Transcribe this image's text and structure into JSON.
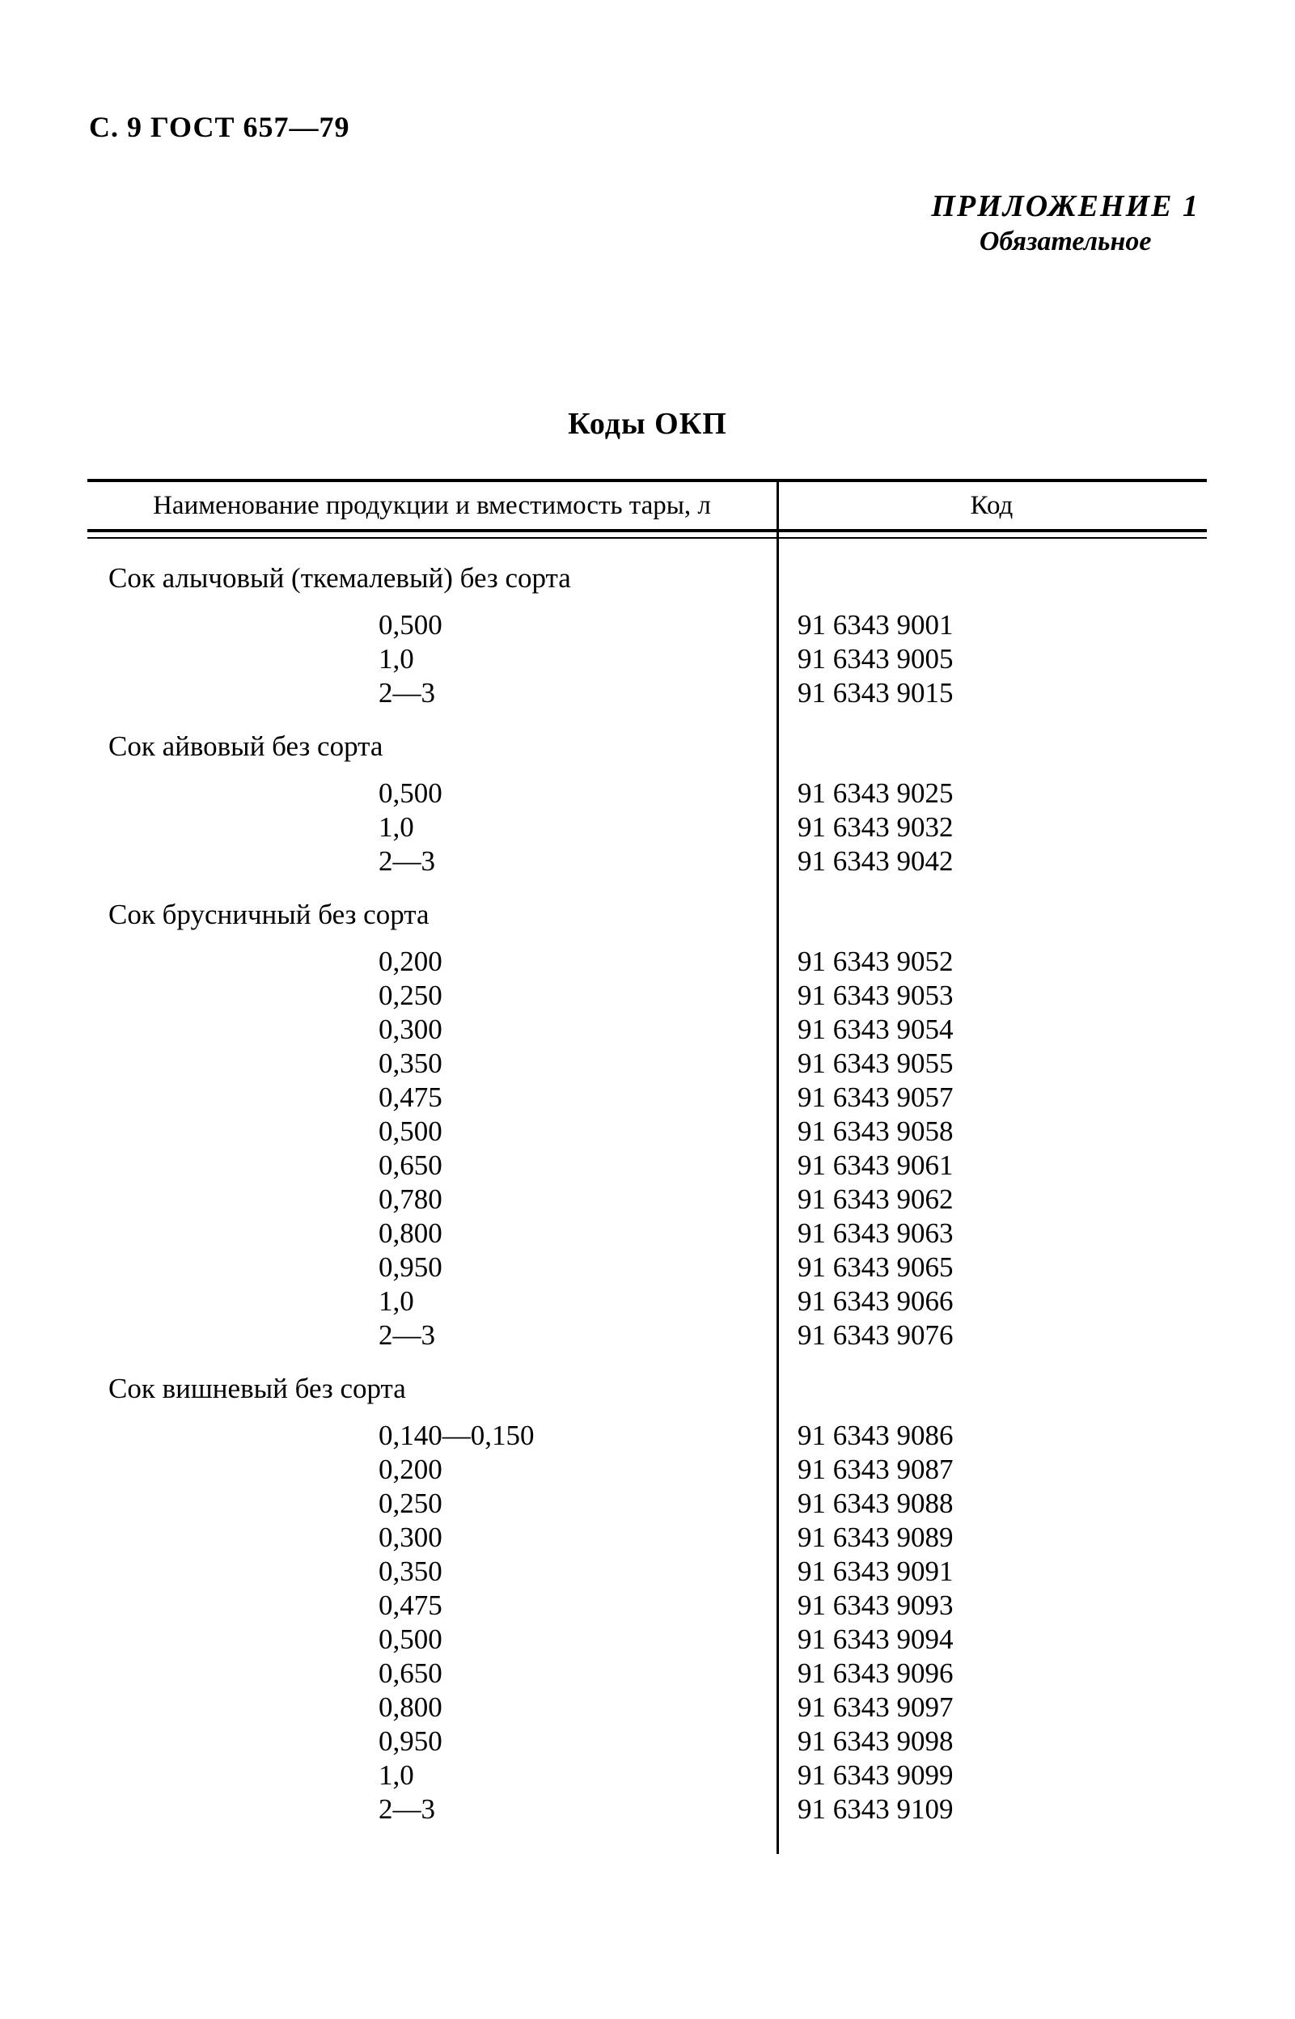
{
  "page": {
    "running_head": "С. 9 ГОСТ 657—79",
    "appendix_title": "ПРИЛОЖЕНИЕ 1",
    "appendix_subtitle": "Обязательное",
    "doc_title": "Коды ОКП"
  },
  "table": {
    "col1_header": "Наименование продукции и вместимость тары, л",
    "col2_header": "Код",
    "sections": [
      {
        "name": "Сок алычовый (ткемалевый) без сорта",
        "rows": [
          {
            "capacity": "0,500",
            "code": "91 6343 9001"
          },
          {
            "capacity": "1,0",
            "code": "91 6343 9005"
          },
          {
            "capacity": "2—3",
            "code": "91 6343 9015"
          }
        ]
      },
      {
        "name": "Сок айвовый без сорта",
        "rows": [
          {
            "capacity": "0,500",
            "code": "91 6343 9025"
          },
          {
            "capacity": "1,0",
            "code": "91 6343 9032"
          },
          {
            "capacity": "2—3",
            "code": "91 6343 9042"
          }
        ]
      },
      {
        "name": "Сок брусничный без сорта",
        "rows": [
          {
            "capacity": "0,200",
            "code": "91 6343 9052"
          },
          {
            "capacity": "0,250",
            "code": "91 6343 9053"
          },
          {
            "capacity": "0,300",
            "code": "91 6343 9054"
          },
          {
            "capacity": "0,350",
            "code": "91 6343 9055"
          },
          {
            "capacity": "0,475",
            "code": "91 6343 9057"
          },
          {
            "capacity": "0,500",
            "code": "91 6343 9058"
          },
          {
            "capacity": "0,650",
            "code": "91 6343 9061"
          },
          {
            "capacity": "0,780",
            "code": "91 6343 9062"
          },
          {
            "capacity": "0,800",
            "code": "91 6343 9063"
          },
          {
            "capacity": "0,950",
            "code": "91 6343 9065"
          },
          {
            "capacity": "1,0",
            "code": "91 6343 9066"
          },
          {
            "capacity": "2—3",
            "code": "91 6343 9076"
          }
        ]
      },
      {
        "name": "Сок вишневый без сорта",
        "rows": [
          {
            "capacity": "0,140—0,150",
            "code": "91 6343 9086"
          },
          {
            "capacity": "0,200",
            "code": "91 6343 9087"
          },
          {
            "capacity": "0,250",
            "code": "91 6343 9088"
          },
          {
            "capacity": "0,300",
            "code": "91 6343 9089"
          },
          {
            "capacity": "0,350",
            "code": "91 6343 9091"
          },
          {
            "capacity": "0,475",
            "code": "91 6343 9093"
          },
          {
            "capacity": "0,500",
            "code": "91 6343 9094"
          },
          {
            "capacity": "0,650",
            "code": "91 6343 9096"
          },
          {
            "capacity": "0,800",
            "code": "91 6343 9097"
          },
          {
            "capacity": "0,950",
            "code": "91 6343 9098"
          },
          {
            "capacity": "1,0",
            "code": "91 6343 9099"
          },
          {
            "capacity": "2—3",
            "code": "91 6343 9109"
          }
        ]
      }
    ]
  }
}
